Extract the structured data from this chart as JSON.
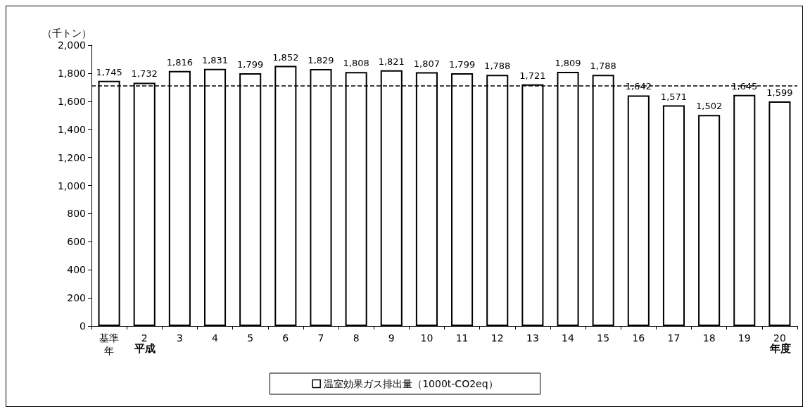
{
  "chart_data": {
    "type": "bar",
    "ylabel": "（千トン）",
    "categories": [
      "基準年",
      "2",
      "3",
      "4",
      "5",
      "6",
      "7",
      "8",
      "9",
      "10",
      "11",
      "12",
      "13",
      "14",
      "15",
      "16",
      "17",
      "18",
      "19",
      "20"
    ],
    "series": [
      {
        "name": "温室効果ガス排出量（1000t-CO2eq）",
        "color": "#ffffff",
        "values": [
          1745,
          1732,
          1816,
          1831,
          1799,
          1852,
          1829,
          1808,
          1821,
          1807,
          1799,
          1788,
          1721,
          1809,
          1788,
          1642,
          1571,
          1502,
          1645,
          1599
        ],
        "value_labels": [
          "1,745",
          "1,732",
          "1,816",
          "1,831",
          "1,799",
          "1,852",
          "1,829",
          "1,808",
          "1,821",
          "1,807",
          "1,799",
          "1,788",
          "1,721",
          "1,809",
          "1,788",
          "1,642",
          "1,571",
          "1,502",
          "1,645",
          "1,599"
        ]
      }
    ],
    "ylim": [
      0,
      2000
    ],
    "yticks": [
      0,
      200,
      400,
      600,
      800,
      {
        "value": 1000,
        "label": "1,000"
      },
      {
        "value": 1200,
        "label": "1,200"
      },
      {
        "value": 1400,
        "label": "1,400"
      },
      {
        "value": 1600,
        "label": "1,600"
      },
      {
        "value": 1800,
        "label": "1,800"
      },
      {
        "value": 2000,
        "label": "2,000"
      }
    ],
    "ref_lines": [
      {
        "axis": "y",
        "value": 1710,
        "color": "#000000",
        "line_style": "dashed"
      }
    ],
    "annotations": [
      "平成",
      "年度"
    ],
    "grid": false,
    "legend": "bottom"
  }
}
